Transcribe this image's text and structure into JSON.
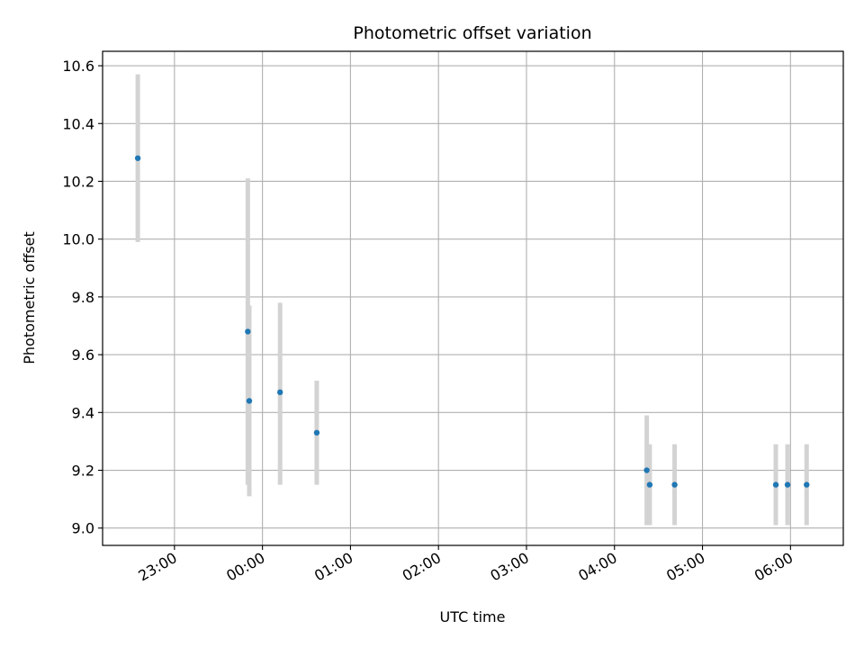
{
  "chart_data": {
    "type": "scatter",
    "title": "Photometric offset variation",
    "xlabel": "UTC time",
    "ylabel": "Photometric offset",
    "x_unit": "UTC time (HH:MM)",
    "xlim": [
      "22:11",
      "06:36"
    ],
    "ylim": [
      8.94,
      10.65
    ],
    "grid": true,
    "x_ticks": [
      "23:00",
      "00:00",
      "01:00",
      "02:00",
      "03:00",
      "04:00",
      "05:00",
      "06:00"
    ],
    "y_ticks": [
      9.0,
      9.2,
      9.4,
      9.6,
      9.8,
      10.0,
      10.2,
      10.4,
      10.6
    ],
    "point_color": "#1f77b4",
    "errorbar_color": "#d3d3d3",
    "points": [
      {
        "x": "22:35",
        "y": 10.28,
        "ylow": 9.99,
        "yhigh": 10.57
      },
      {
        "x": "23:50",
        "y": 9.68,
        "ylow": 9.15,
        "yhigh": 10.21
      },
      {
        "x": "23:51",
        "y": 9.44,
        "ylow": 9.11,
        "yhigh": 9.77
      },
      {
        "x": "00:12",
        "y": 9.47,
        "ylow": 9.15,
        "yhigh": 9.78
      },
      {
        "x": "00:37",
        "y": 9.33,
        "ylow": 9.15,
        "yhigh": 9.51
      },
      {
        "x": "04:22",
        "y": 9.2,
        "ylow": 9.01,
        "yhigh": 9.39
      },
      {
        "x": "04:24",
        "y": 9.15,
        "ylow": 9.01,
        "yhigh": 9.29
      },
      {
        "x": "04:41",
        "y": 9.15,
        "ylow": 9.01,
        "yhigh": 9.29
      },
      {
        "x": "05:50",
        "y": 9.15,
        "ylow": 9.01,
        "yhigh": 9.29
      },
      {
        "x": "05:58",
        "y": 9.15,
        "ylow": 9.01,
        "yhigh": 9.29
      },
      {
        "x": "06:11",
        "y": 9.15,
        "ylow": 9.01,
        "yhigh": 9.29
      }
    ]
  }
}
